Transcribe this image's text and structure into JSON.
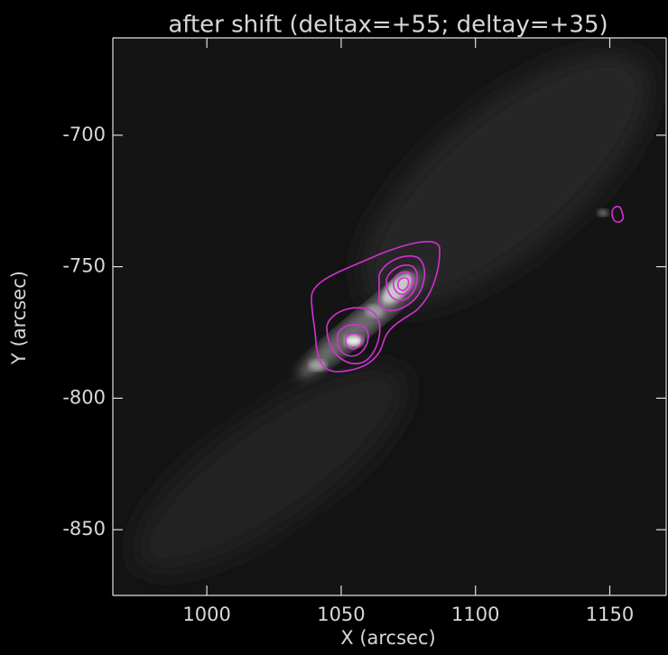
{
  "chart_data": {
    "type": "image",
    "title": "after shift (deltax=+55; deltay=+35)",
    "x_label": "X (arcsec)",
    "y_label": "Y (arcsec)",
    "xlim": [
      965,
      1171
    ],
    "ylim": [
      -875,
      -663
    ],
    "xticks": [
      1000,
      1050,
      1100,
      1150
    ],
    "yticks": [
      -700,
      -750,
      -800,
      -850
    ],
    "contour_color": "#d62fd6"
  }
}
